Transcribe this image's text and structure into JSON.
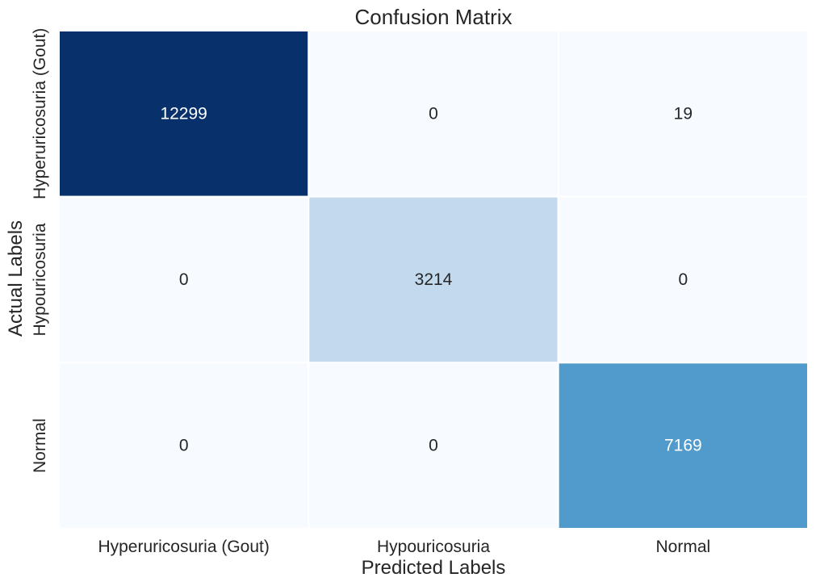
{
  "chart_data": {
    "type": "heatmap",
    "title": "Confusion Matrix",
    "xlabel": "Predicted Labels",
    "ylabel": "Actual Labels",
    "x_categories": [
      "Hyperuricosuria (Gout)",
      "Hypouricosuria",
      "Normal"
    ],
    "y_categories": [
      "Hyperuricosuria (Gout)",
      "Hypouricosuria",
      "Normal"
    ],
    "values": [
      [
        12299,
        0,
        19
      ],
      [
        0,
        3214,
        0
      ],
      [
        0,
        0,
        7169
      ]
    ],
    "colormap": "Blues",
    "color_low": "#f7fbff",
    "color_high": "#08306b",
    "text_color_dark": "#262626",
    "text_color_light": "#ffffff",
    "colorbar": false
  }
}
